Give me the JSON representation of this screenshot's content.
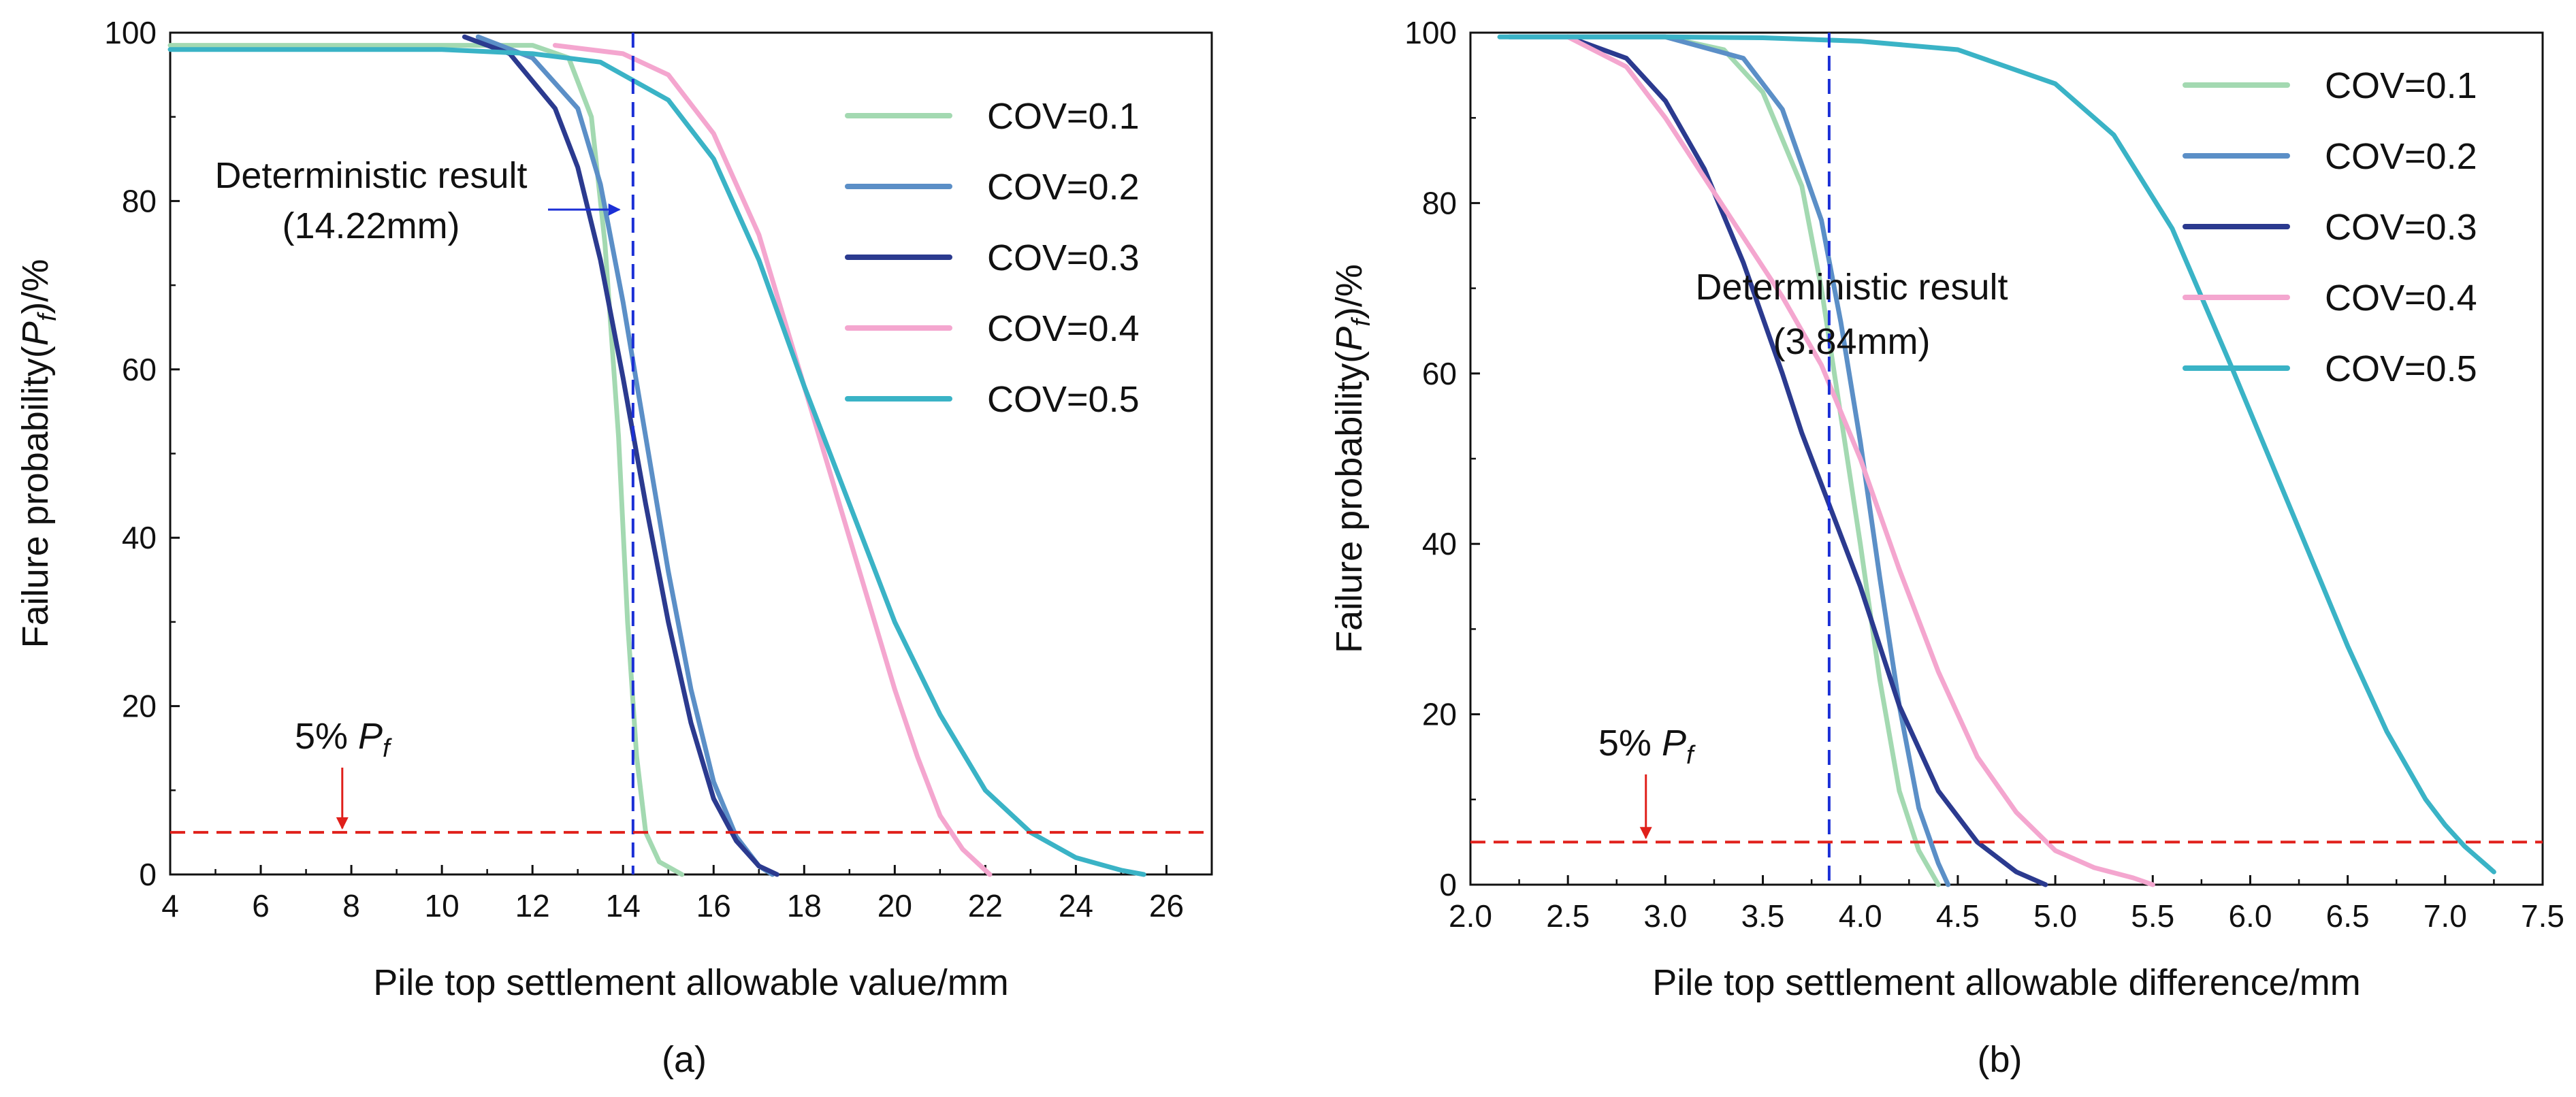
{
  "figure_labels": [
    "(a)",
    "(b)"
  ],
  "chart_data": [
    {
      "type": "line",
      "panel_label": "(a)",
      "xlabel": "Pile top settlement allowable value/mm",
      "ylabel": "Failure probability(Pf)/%",
      "ylabel_parts": {
        "pre": "Failure probability(",
        "italic": "P",
        "sub": "f",
        "post": ")/%"
      },
      "xlim": [
        4,
        27
      ],
      "ylim": [
        0,
        100
      ],
      "xticks": [
        4,
        6,
        8,
        10,
        12,
        14,
        16,
        18,
        20,
        22,
        24,
        26
      ],
      "yticks": [
        0,
        20,
        40,
        60,
        80,
        100
      ],
      "legend_position": "top-right",
      "series": [
        {
          "name": "COV=0.1",
          "color": "#a3d9b1",
          "x": [
            4,
            10,
            12,
            12.8,
            13.3,
            13.6,
            13.9,
            14.1,
            14.3,
            14.5,
            14.8,
            15.3
          ],
          "y": [
            98.5,
            98.5,
            98.5,
            97,
            90,
            75,
            52,
            30,
            14,
            5,
            1.5,
            0
          ]
        },
        {
          "name": "COV=0.2",
          "color": "#5b8fc7",
          "x": [
            10.8,
            12,
            13,
            13.5,
            14,
            14.5,
            15,
            15.5,
            16,
            16.5,
            17,
            17.3
          ],
          "y": [
            99.5,
            97,
            91,
            82,
            68,
            52,
            36,
            22,
            11,
            4.5,
            1,
            0
          ]
        },
        {
          "name": "COV=0.3",
          "color": "#2b3a8f",
          "x": [
            10.5,
            11.5,
            12.5,
            13,
            13.5,
            14,
            14.5,
            15,
            15.5,
            16,
            16.5,
            17,
            17.4
          ],
          "y": [
            99.5,
            97.5,
            91,
            84,
            73,
            59,
            44,
            30,
            18,
            9,
            4,
            1,
            0
          ]
        },
        {
          "name": "COV=0.4",
          "color": "#f4a6cf",
          "x": [
            12.5,
            14,
            15,
            16,
            17,
            18,
            18.5,
            19,
            19.5,
            20,
            20.5,
            21,
            21.5,
            22.1
          ],
          "y": [
            98.5,
            97.5,
            95,
            88,
            76,
            58,
            49,
            40,
            31,
            22,
            14,
            7,
            3,
            0
          ]
        },
        {
          "name": "COV=0.5",
          "color": "#3ab3c6",
          "x": [
            4,
            10,
            12,
            13.5,
            15,
            16,
            17,
            18,
            19,
            20,
            21,
            22,
            23,
            24,
            25,
            25.5
          ],
          "y": [
            98,
            98,
            97.5,
            96.5,
            92,
            85,
            73,
            58,
            44,
            30,
            19,
            10,
            5,
            2,
            0.5,
            0
          ]
        }
      ],
      "reference_lines": {
        "deterministic_x": 14.22,
        "pf_level": 5
      },
      "annotations": {
        "deterministic_title": "Deterministic result",
        "deterministic_value": "(14.22mm)",
        "pf_prefix": "5% ",
        "pf_italic": "P",
        "pf_sub": "f",
        "pf_arrow_x": 7.8
      }
    },
    {
      "type": "line",
      "panel_label": "(b)",
      "xlabel": "Pile top settlement allowable difference/mm",
      "ylabel": "Failure probability(Pf)/%",
      "ylabel_parts": {
        "pre": "Failure probability(",
        "italic": "P",
        "sub": "f",
        "post": ")/%"
      },
      "xlim": [
        2.0,
        7.5
      ],
      "ylim": [
        0,
        100
      ],
      "xticks": [
        2.0,
        2.5,
        3.0,
        3.5,
        4.0,
        4.5,
        5.0,
        5.5,
        6.0,
        6.5,
        7.0,
        7.5
      ],
      "yticks": [
        0,
        20,
        40,
        60,
        80,
        100
      ],
      "legend_position": "top-right",
      "series": [
        {
          "name": "COV=0.1",
          "color": "#a3d9b1",
          "x": [
            2.2,
            3.0,
            3.3,
            3.5,
            3.7,
            3.8,
            3.9,
            4.0,
            4.1,
            4.2,
            4.3,
            4.4
          ],
          "y": [
            99.5,
            99.5,
            98,
            93,
            82,
            70,
            55,
            40,
            24,
            11,
            4,
            0
          ]
        },
        {
          "name": "COV=0.2",
          "color": "#5b8fc7",
          "x": [
            2.2,
            3.0,
            3.4,
            3.6,
            3.8,
            3.9,
            4.0,
            4.1,
            4.2,
            4.3,
            4.4,
            4.45
          ],
          "y": [
            99.5,
            99.5,
            97,
            91,
            78,
            66,
            52,
            36,
            21,
            9,
            2.5,
            0
          ]
        },
        {
          "name": "COV=0.3",
          "color": "#2b3a8f",
          "x": [
            2.5,
            2.8,
            3.0,
            3.2,
            3.4,
            3.6,
            3.7,
            3.8,
            3.9,
            4.0,
            4.2,
            4.4,
            4.6,
            4.8,
            4.95
          ],
          "y": [
            99.5,
            97,
            92,
            84,
            73,
            60,
            53,
            47,
            41,
            35,
            21,
            11,
            5,
            1.5,
            0
          ]
        },
        {
          "name": "COV=0.4",
          "color": "#f4a6cf",
          "x": [
            2.5,
            2.8,
            3.0,
            3.2,
            3.4,
            3.6,
            3.8,
            4.0,
            4.2,
            4.4,
            4.6,
            4.8,
            5.0,
            5.2,
            5.4,
            5.5
          ],
          "y": [
            99.5,
            96,
            90,
            83,
            76,
            69,
            61,
            50,
            37,
            25,
            15,
            8.5,
            4,
            2,
            0.8,
            0
          ]
        },
        {
          "name": "COV=0.5",
          "color": "#3ab3c6",
          "x": [
            2.15,
            3.0,
            3.5,
            4.0,
            4.5,
            5.0,
            5.3,
            5.6,
            5.9,
            6.1,
            6.3,
            6.5,
            6.7,
            6.9,
            7.0,
            7.1,
            7.25
          ],
          "y": [
            99.5,
            99.5,
            99.4,
            99,
            98,
            94,
            88,
            77,
            61,
            50,
            39,
            28,
            18,
            10,
            7,
            4.5,
            1.5
          ]
        }
      ],
      "reference_lines": {
        "deterministic_x": 3.84,
        "pf_level": 5
      },
      "annotations": {
        "deterministic_title": "Deterministic result",
        "deterministic_value": "(3.84mm)",
        "pf_prefix": "5% ",
        "pf_italic": "P",
        "pf_sub": "f",
        "pf_arrow_x": 2.9
      }
    }
  ]
}
